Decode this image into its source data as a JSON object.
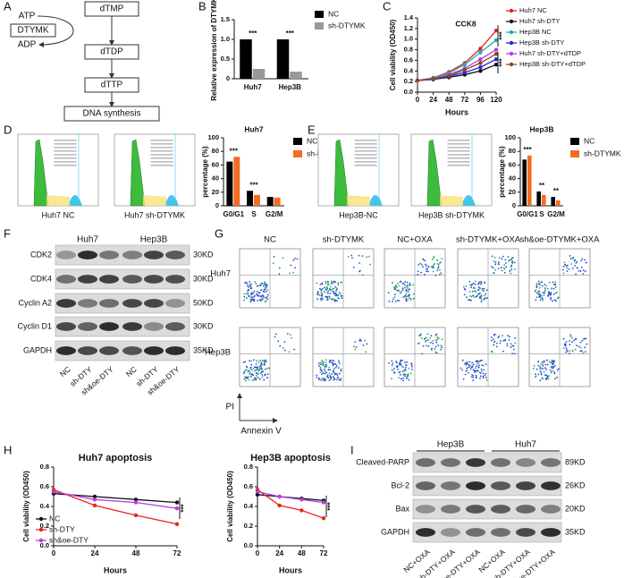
{
  "panel_labels": [
    "A",
    "B",
    "C",
    "D",
    "E",
    "F",
    "G",
    "H",
    "I"
  ],
  "pathway": {
    "nodes": [
      "dTMP",
      "dTDP",
      "dTTP",
      "DNA synthesis"
    ],
    "side": [
      "ATP",
      "DTYMK",
      "ADP"
    ]
  },
  "flow_cycle": {
    "D": [
      "Huh7 NC",
      "Huh7 sh-DTYMK"
    ],
    "E": [
      "Hep3B-NC",
      "Hep3B sh-DTYMK"
    ]
  },
  "blot_F": {
    "groups": [
      "Huh7",
      "Hep3B"
    ],
    "rows": [
      {
        "label": "CDK2",
        "size": "30KD"
      },
      {
        "label": "CDK4",
        "size": "30KD"
      },
      {
        "label": "Cyclin A2",
        "size": "50KD"
      },
      {
        "label": "Cyclin D1",
        "size": "30KD"
      },
      {
        "label": "GAPDH",
        "size": "35KD"
      }
    ],
    "lanes": [
      "NC",
      "sh-DTY",
      "sh&oe-DTY",
      "NC",
      "sh-DTY",
      "sh&oe-DTY"
    ]
  },
  "flow_G": {
    "columns": [
      "NC",
      "sh-DTYMK",
      "NC+OXA",
      "sh-DTYMK+OXA",
      "sh&oe-DTYMK+OXA"
    ],
    "rows": [
      "Huh7",
      "Hep3B"
    ],
    "y_axis": "PI",
    "x_axis": "Annexin V"
  },
  "blot_I": {
    "groups": [
      "Hep3B",
      "Huh7"
    ],
    "rows": [
      {
        "label": "Cleaved-PARP",
        "size": "89KD"
      },
      {
        "label": "Bcl-2",
        "size": "26KD"
      },
      {
        "label": "Bax",
        "size": "20KD"
      },
      {
        "label": "GAPDH",
        "size": "35KD"
      }
    ],
    "lanes": [
      "NC+OXA",
      "sh-DTY+OXA",
      "sh&oe-DTY+OXA",
      "NC+OXA",
      "sh-DTY+OXA",
      "sh&oe-DTY+OXA"
    ]
  },
  "chart_data": [
    {
      "type": "bar",
      "ylabel": "Relative expression of DTYMK",
      "categories": [
        "Huh7",
        "Hep3B"
      ],
      "series": [
        {
          "name": "NC",
          "color": "#000000",
          "values": [
            1,
            1
          ]
        },
        {
          "name": "sh-DTYMK",
          "color": "#999999",
          "values": [
            0.25,
            0.18
          ]
        }
      ],
      "ylim": [
        0,
        1.5
      ],
      "yticks": [
        0,
        0.5,
        {
          "value": 1,
          "label": "1.0"
        },
        1.5
      ],
      "annotations": [
        "***",
        "***"
      ]
    },
    {
      "type": "line",
      "title": "CCK8",
      "xlabel": "Hours",
      "ylabel": "Cell viability (OD450)",
      "x": [
        0,
        24,
        48,
        72,
        96,
        120
      ],
      "series": [
        {
          "name": "Huh7 NC",
          "color": "#e8231f",
          "values": [
            0.22,
            0.27,
            0.38,
            0.55,
            0.82,
            1.16
          ]
        },
        {
          "name": "Huh7 sh-DTY",
          "color": "#111111",
          "values": [
            0.22,
            0.24,
            0.28,
            0.33,
            0.4,
            0.52
          ]
        },
        {
          "name": "Hep3B NC",
          "color": "#16b3b0",
          "values": [
            0.22,
            0.27,
            0.36,
            0.52,
            0.75,
            0.98
          ]
        },
        {
          "name": "Hep3B sh-DTY",
          "color": "#2a2ad8",
          "values": [
            0.22,
            0.24,
            0.3,
            0.37,
            0.47,
            0.62
          ]
        },
        {
          "name": "Huh7 sh-DTY+dTDP",
          "color": "#b43fe0",
          "values": [
            0.22,
            0.26,
            0.33,
            0.45,
            0.62,
            0.8
          ]
        },
        {
          "name": "Hep3B sh-DTY+dTDP",
          "color": "#8a4a1c",
          "values": [
            0.22,
            0.25,
            0.31,
            0.42,
            0.55,
            0.72
          ]
        }
      ],
      "xlim": [
        0,
        120
      ],
      "xticks": [
        0,
        24,
        48,
        72,
        96,
        120
      ],
      "ylim": [
        0,
        1.4
      ],
      "yticks": [
        {
          "value": 0,
          "label": "0.0"
        },
        0.2,
        0.4,
        0.6,
        0.8,
        {
          "value": 1,
          "label": "1.0"
        },
        1.2,
        1.4
      ],
      "annotations": [
        "***",
        "***"
      ]
    },
    {
      "type": "bar",
      "title": "Huh7",
      "ylabel": "percentage (%)",
      "categories": [
        "G0/G1",
        "S",
        "G2/M"
      ],
      "series": [
        {
          "name": "NC",
          "color": "#000000",
          "values": [
            65,
            22,
            13
          ]
        },
        {
          "name": "sh-DTYMK",
          "color": "#f36c21",
          "values": [
            72,
            16,
            12
          ]
        }
      ],
      "ylim": [
        0,
        100
      ],
      "yticks": [
        0,
        20,
        40,
        60,
        80,
        100
      ],
      "annotations": [
        "***",
        "***"
      ]
    },
    {
      "type": "bar",
      "title": "Hep3B",
      "ylabel": "percentage (%)",
      "categories": [
        "G0/G1",
        "S",
        "G2/M"
      ],
      "series": [
        {
          "name": "NC",
          "color": "#000000",
          "values": [
            68,
            21,
            13
          ]
        },
        {
          "name": "sh-DTYMK",
          "color": "#f36c21",
          "values": [
            74,
            16,
            8
          ]
        }
      ],
      "ylim": [
        0,
        100
      ],
      "yticks": [
        0,
        20,
        40,
        60,
        80,
        100
      ],
      "annotations": [
        "***",
        "**",
        "**"
      ]
    },
    {
      "type": "line",
      "title": "Huh7  apoptosis",
      "xlabel": "Hours",
      "ylabel": "Cell viability (OD450)",
      "x": [
        0,
        24,
        48,
        72
      ],
      "series": [
        {
          "name": "NC",
          "color": "#111111",
          "values": [
            0.53,
            0.5,
            0.47,
            0.44
          ]
        },
        {
          "name": "sh-DTY",
          "color": "#e8231f",
          "values": [
            0.57,
            0.41,
            0.31,
            0.22
          ]
        },
        {
          "name": "sh&oe-DTY",
          "color": "#b43fe0",
          "values": [
            0.55,
            0.47,
            0.44,
            0.38
          ]
        }
      ],
      "xlim": [
        0,
        72
      ],
      "xticks": [
        0,
        24,
        48,
        72
      ],
      "ylim": [
        0,
        0.8
      ],
      "yticks": [
        {
          "value": 0,
          "label": "0.0"
        },
        0.2,
        0.4,
        0.6,
        0.8
      ],
      "annotations": [
        "***"
      ]
    },
    {
      "type": "line",
      "title": "Hep3B  apoptosis",
      "xlabel": "Hours",
      "ylabel": "Cell viability (OD450)",
      "x": [
        0,
        24,
        48,
        72
      ],
      "series": [
        {
          "color": "#111111",
          "values": [
            0.52,
            0.5,
            0.48,
            0.46
          ]
        },
        {
          "color": "#e8231f",
          "values": [
            0.57,
            0.41,
            0.36,
            0.28
          ]
        },
        {
          "color": "#b43fe0",
          "values": [
            0.55,
            0.5,
            0.47,
            0.44
          ]
        }
      ],
      "xlim": [
        0,
        72
      ],
      "xticks": [
        0,
        24,
        48,
        72
      ],
      "ylim": [
        0,
        0.8
      ],
      "yticks": [
        {
          "value": 0,
          "label": "0.0"
        },
        0.2,
        0.4,
        0.6,
        0.8
      ],
      "annotations": [
        "***"
      ]
    }
  ]
}
